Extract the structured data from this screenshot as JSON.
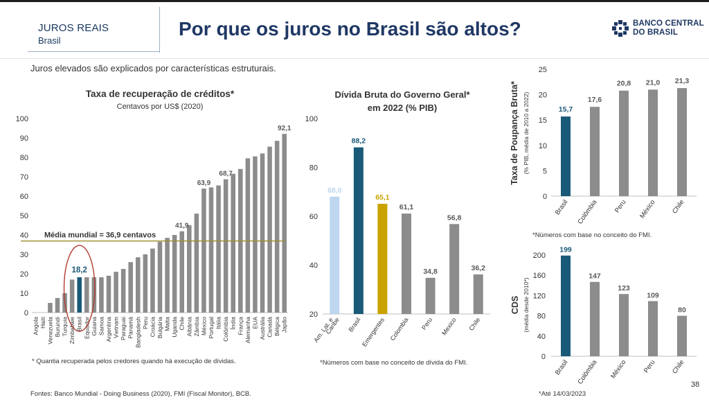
{
  "header": {
    "kicker": "JUROS REAIS",
    "subtitle": "Brasil",
    "title": "Por que os juros no Brasil são altos?",
    "logo_line1": "BANCO CENTRAL",
    "logo_line2": "DO BRASIL",
    "logo_icon": "bcb-emblem-icon"
  },
  "intro": "Juros elevados são explicados por características estruturais.",
  "footnotes": {
    "recovery": "* Quantia recuperada pelos credores quando há execução de dívidas.",
    "debt": "*Números com base no conceito de dívida do FMI.",
    "savings": "*Números com base no conceito do FMI.",
    "cds": "*Até 14/03/2023",
    "sources": "Fontes: Banco Mundial - Doing Business (2020), FMI (Fiscal Monitor), BCB."
  },
  "page_number": "38",
  "colors": {
    "highlight": "#1a5a78",
    "bar": "#8c8c8c",
    "latam": "#bdd7ee",
    "emerging": "#c9a200",
    "mean_line": "#9b8e2e",
    "circle": "#b03a2e"
  },
  "chart_data": [
    {
      "type": "bar",
      "title": "Taxa de recuperação de créditos*",
      "subtitle": "Centavos por US$ (2020)",
      "categories": [
        "Angola",
        "Haiti",
        "Venezuela",
        "Burundi",
        "Turquia",
        "Zimbabwe",
        "Brasil",
        "Equador",
        "Guiana",
        "Samoa",
        "Argentina",
        "Vietnam",
        "Paraguai",
        "Panamá",
        "Bangladesh",
        "Peru",
        "Croácia",
        "Bulgária",
        "Malta",
        "Uganda",
        "Chile",
        "Albânia",
        "Zâmbia",
        "México",
        "Portugal",
        "Itália",
        "Colômbia",
        "Índia",
        "França",
        "Alemanha",
        "EUA",
        "Austrália",
        "Canadá",
        "Bélgica",
        "Japão"
      ],
      "values": [
        0,
        0,
        5,
        7.5,
        10,
        17,
        18.2,
        18.2,
        18.2,
        18.2,
        19,
        21,
        22.5,
        26,
        28.5,
        30,
        33,
        36.5,
        38.5,
        40,
        41.9,
        45,
        51,
        63.9,
        64.5,
        65.5,
        68.7,
        71.5,
        74,
        79.5,
        80.5,
        82,
        85.5,
        88.5,
        92.1
      ],
      "data_labels": [
        {
          "category": "Brasil",
          "label": "18,2"
        },
        {
          "category": "Chile",
          "label": "41,9"
        },
        {
          "category": "México",
          "label": "63,9"
        },
        {
          "category": "Colômbia",
          "label": "68,7"
        },
        {
          "category": "Japão",
          "label": "92,1"
        }
      ],
      "highlight": "Brasil",
      "ylim": [
        0,
        100
      ],
      "yticks": [
        0,
        10,
        20,
        30,
        40,
        50,
        60,
        70,
        80,
        90,
        100
      ],
      "reference_line": {
        "value": 36.9,
        "label": "Média mundial = 36,9 centavos"
      },
      "grid": false
    },
    {
      "type": "bar",
      "title": "Dívida Bruta do Governo Geral*",
      "subtitle": "em 2022 (% PIB)",
      "categories": [
        "Am. Lat. e Caribe",
        "Brasil",
        "Emergentes",
        "Colombia",
        "Peru",
        "Mexico",
        "Chile"
      ],
      "values": [
        68.0,
        88.2,
        65.1,
        61.1,
        34.8,
        56.8,
        36.2
      ],
      "labels": [
        "68,0",
        "88,2",
        "65,1",
        "61,1",
        "34,8",
        "56,8",
        "36,2"
      ],
      "ylim": [
        20,
        100
      ],
      "yticks": [
        20,
        40,
        60,
        80,
        100
      ],
      "grid": false
    },
    {
      "type": "bar",
      "ylabel": "Taxa de Poupança Bruta*",
      "ylabel_sub": "(% PIB, média de 2010 a 2022)",
      "categories": [
        "Brasil",
        "Colômbia",
        "Peru",
        "México",
        "Chile"
      ],
      "values": [
        15.7,
        17.6,
        20.8,
        21.0,
        21.3
      ],
      "labels": [
        "15,7",
        "17,6",
        "20,8",
        "21,0",
        "21,3"
      ],
      "ylim": [
        0,
        25
      ],
      "yticks": [
        0,
        5,
        10,
        15,
        20,
        25
      ],
      "grid": false
    },
    {
      "type": "bar",
      "ylabel": "CDS",
      "ylabel_sub": "(média desde 2010*)",
      "categories": [
        "Brasil",
        "Colômbia",
        "México",
        "Peru",
        "Chile"
      ],
      "values": [
        199,
        147,
        123,
        109,
        80
      ],
      "labels": [
        "199",
        "147",
        "123",
        "109",
        "80"
      ],
      "ylim": [
        0,
        200
      ],
      "yticks": [
        0,
        40,
        80,
        120,
        160,
        200
      ],
      "grid": false
    }
  ]
}
